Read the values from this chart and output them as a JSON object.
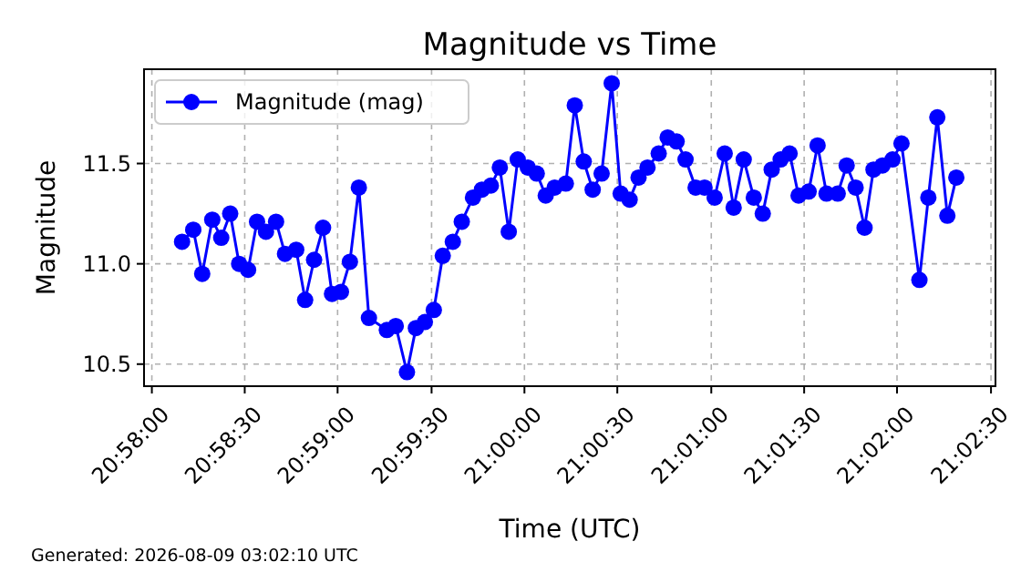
{
  "chart_data": {
    "type": "line",
    "title": "Magnitude vs Time",
    "xlabel": "Time (UTC)",
    "ylabel": "Magnitude",
    "annotations": [
      "Generated: 2026-08-09 03:02:10 UTC"
    ],
    "x": [
      20.9694,
      20.9704,
      20.9712,
      20.9721,
      20.9729,
      20.9737,
      20.9745,
      20.9753,
      20.9761,
      20.9769,
      20.9778,
      20.9786,
      20.9796,
      20.9804,
      20.9812,
      20.982,
      20.9828,
      20.9836,
      20.9844,
      20.9852,
      20.9861,
      20.9877,
      20.9885,
      20.9895,
      20.9903,
      20.9911,
      20.9919,
      20.9927,
      20.9936,
      20.9944,
      20.9954,
      20.9962,
      20.997,
      20.9978,
      20.9986,
      20.9994,
      21.0003,
      21.0011,
      21.0019,
      21.0027,
      21.0037,
      21.0045,
      21.0053,
      21.0061,
      21.0069,
      21.0078,
      21.0086,
      21.0094,
      21.0102,
      21.011,
      21.012,
      21.0128,
      21.0136,
      21.0144,
      21.0153,
      21.0161,
      21.017,
      21.0179,
      21.0187,
      21.0196,
      21.0205,
      21.0213,
      21.0221,
      21.0229,
      21.0237,
      21.0245,
      21.0254,
      21.0262,
      21.027,
      21.028,
      21.0288,
      21.0296,
      21.0304,
      21.0312,
      21.032,
      21.0329,
      21.0337,
      21.0353,
      21.0361,
      21.0369,
      21.0378,
      21.0386
    ],
    "series": [
      {
        "name": "Magnitude (mag)",
        "color": "#0000ff",
        "values": [
          11.11,
          11.17,
          10.95,
          11.22,
          11.13,
          11.25,
          11.0,
          10.97,
          11.21,
          11.16,
          11.21,
          11.05,
          11.07,
          10.82,
          11.02,
          11.18,
          10.85,
          10.86,
          11.01,
          11.38,
          10.73,
          10.67,
          10.69,
          10.46,
          10.68,
          10.71,
          10.77,
          11.04,
          11.11,
          11.21,
          11.33,
          11.37,
          11.39,
          11.48,
          11.16,
          11.52,
          11.48,
          11.45,
          11.34,
          11.38,
          11.4,
          11.79,
          11.51,
          11.37,
          11.45,
          11.9,
          11.35,
          11.32,
          11.43,
          11.48,
          11.55,
          11.63,
          11.61,
          11.52,
          11.38,
          11.38,
          11.33,
          11.55,
          11.28,
          11.52,
          11.33,
          11.25,
          11.47,
          11.52,
          11.55,
          11.34,
          11.36,
          11.59,
          11.35,
          11.35,
          11.49,
          11.38,
          11.18,
          11.47,
          11.49,
          11.52,
          11.6,
          10.92,
          11.33,
          11.73,
          11.24,
          11.43
        ]
      }
    ],
    "xlim": [
      20.966,
      21.0421
    ],
    "ylim": [
      10.39,
      11.97
    ],
    "xticks": [
      {
        "value": 20.9667,
        "label": "20:58:00"
      },
      {
        "value": 20.975,
        "label": "20:58:30"
      },
      {
        "value": 20.9833,
        "label": "20:59:00"
      },
      {
        "value": 20.9917,
        "label": "20:59:30"
      },
      {
        "value": 21,
        "label": "21:00:00"
      },
      {
        "value": 21.0083,
        "label": "21:00:30"
      },
      {
        "value": 21.0167,
        "label": "21:01:00"
      },
      {
        "value": 21.025,
        "label": "21:01:30"
      },
      {
        "value": 21.0333,
        "label": "21:02:00"
      },
      {
        "value": 21.0417,
        "label": "21:02:30"
      }
    ],
    "yticks": [
      {
        "value": 10.5,
        "label": "10.5"
      },
      {
        "value": 11,
        "label": "11.0"
      },
      {
        "value": 11.5,
        "label": "11.5"
      }
    ],
    "grid": true,
    "legend": "top left",
    "marker": "circle",
    "line_style": "solid"
  }
}
